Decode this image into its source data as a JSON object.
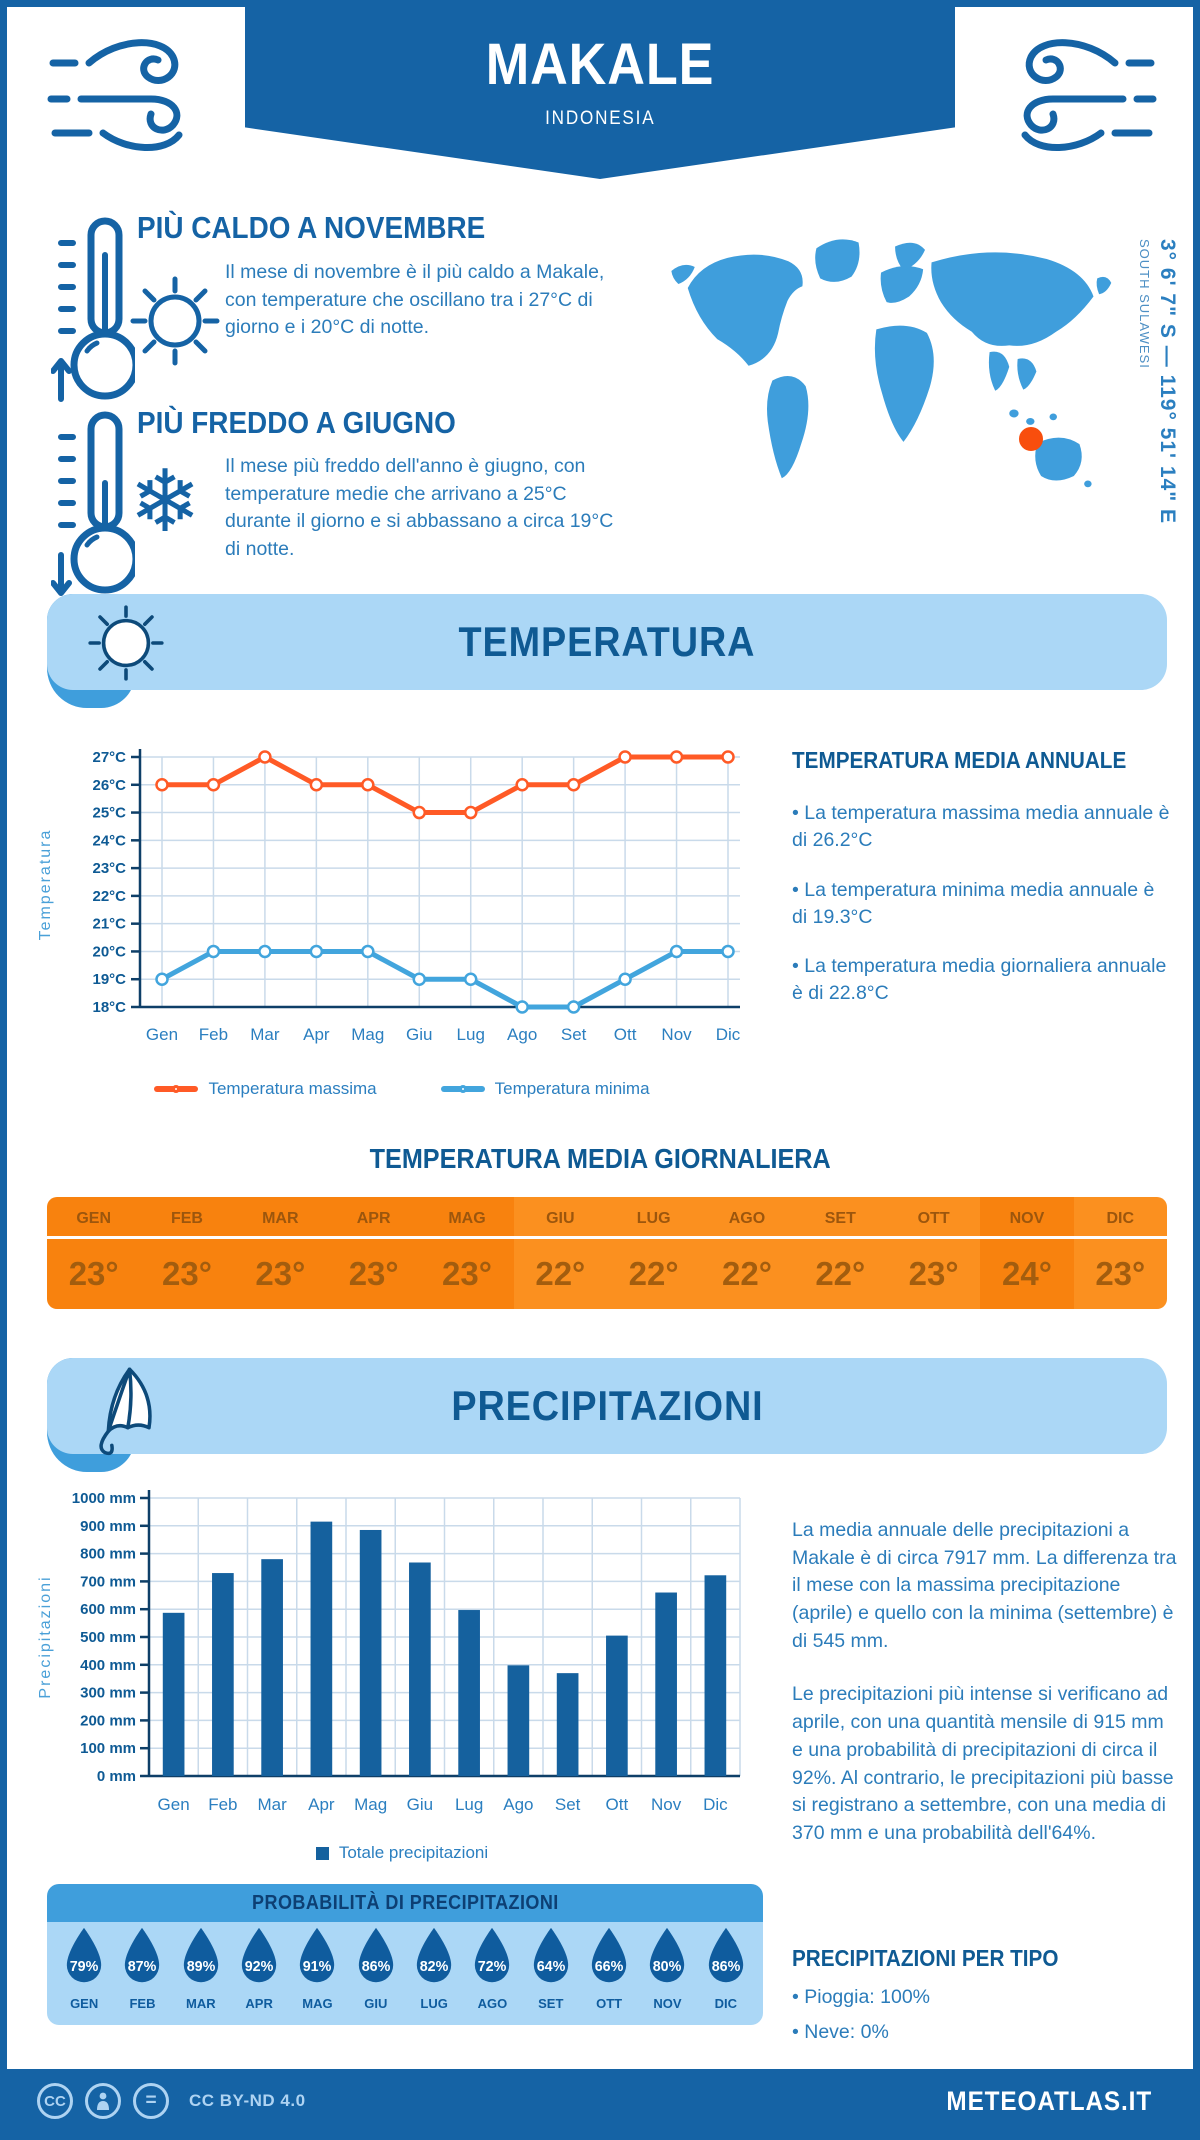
{
  "header": {
    "title": "MAKALE",
    "subtitle": "INDONESIA"
  },
  "map": {
    "coordinates": "3° 6' 7\" S — 119° 51' 14\" E",
    "region": "SOUTH SULAWESI"
  },
  "highlights": {
    "warm": {
      "title": "PIÙ CALDO A NOVEMBRE",
      "text": "Il mese di novembre è il più caldo a Makale, con temperature che oscillano tra i 27°C di giorno e i 20°C di notte."
    },
    "cold": {
      "title": "PIÙ FREDDO A GIUGNO",
      "text": "Il mese più freddo dell'anno è giugno, con temperature medie che arrivano a 25°C durante il giorno e si abbassano a circa 19°C di notte."
    }
  },
  "temperature_section": {
    "title": "TEMPERATURA",
    "annual": {
      "title": "TEMPERATURA MEDIA ANNUALE",
      "bullets": [
        "La temperatura massima media annuale è di 26.2°C",
        "La temperatura minima media annuale è di 19.3°C",
        "La temperatura media giornaliera annuale è di 22.8°C"
      ]
    },
    "daily": {
      "title": "TEMPERATURA MEDIA GIORNALIERA",
      "months": [
        "GEN",
        "FEB",
        "MAR",
        "APR",
        "MAG",
        "GIU",
        "LUG",
        "AGO",
        "SET",
        "OTT",
        "NOV",
        "DIC"
      ],
      "values": [
        "23°",
        "23°",
        "23°",
        "23°",
        "23°",
        "22°",
        "22°",
        "22°",
        "22°",
        "23°",
        "24°",
        "23°"
      ],
      "shade_pattern": [
        "d",
        "d",
        "d",
        "d",
        "d",
        "l",
        "l",
        "l",
        "l",
        "l",
        "d",
        "l"
      ]
    }
  },
  "precipitation_section": {
    "title": "PRECIPITAZIONI",
    "paragraphs": [
      "La media annuale delle precipitazioni a Makale è di circa 7917 mm. La differenza tra il mese con la massima precipitazione (aprile) e quello con la minima (settembre) è di 545 mm.",
      "Le precipitazioni più intense si verificano ad aprile, con una quantità mensile di 915 mm e una probabilità di precipitazioni di circa il 92%. Al contrario, le precipitazioni più basse si registrano a settembre, con una media di 370 mm e una probabilità dell'64%."
    ],
    "probability": {
      "title": "PROBABILITÀ DI PRECIPITAZIONI",
      "months": [
        "GEN",
        "FEB",
        "MAR",
        "APR",
        "MAG",
        "GIU",
        "LUG",
        "AGO",
        "SET",
        "OTT",
        "NOV",
        "DIC"
      ],
      "values": [
        "79%",
        "87%",
        "89%",
        "92%",
        "91%",
        "86%",
        "82%",
        "72%",
        "64%",
        "66%",
        "80%",
        "86%"
      ]
    },
    "types": {
      "title": "PRECIPITAZIONI PER TIPO",
      "bullets": [
        "Pioggia: 100%",
        "Neve: 0%"
      ]
    }
  },
  "chart_data": [
    {
      "type": "line",
      "categories": [
        "Gen",
        "Feb",
        "Mar",
        "Apr",
        "Mag",
        "Giu",
        "Lug",
        "Ago",
        "Set",
        "Ott",
        "Nov",
        "Dic"
      ],
      "ylabel": "Temperatura",
      "ylim": [
        18,
        27
      ],
      "ytick_step": 1,
      "ytick_suffix": "°C",
      "grid": true,
      "legend_position": "bottom",
      "series": [
        {
          "name": "Temperatura massima",
          "color": "#ff5a26",
          "values": [
            26,
            26,
            27,
            26,
            26,
            25,
            25,
            26,
            26,
            27,
            27,
            27
          ]
        },
        {
          "name": "Temperatura minima",
          "color": "#42a5dd",
          "values": [
            19,
            20,
            20,
            20,
            20,
            19,
            19,
            18,
            18,
            19,
            20,
            20
          ]
        }
      ]
    },
    {
      "type": "bar",
      "categories": [
        "Gen",
        "Feb",
        "Mar",
        "Apr",
        "Mag",
        "Giu",
        "Lug",
        "Ago",
        "Set",
        "Ott",
        "Nov",
        "Dic"
      ],
      "values": [
        587,
        730,
        780,
        915,
        885,
        768,
        597,
        398,
        370,
        505,
        660,
        722
      ],
      "series_name": "Totale precipitazioni",
      "ylabel": "Precipitazioni",
      "ylim": [
        0,
        1000
      ],
      "ytick_step": 100,
      "ytick_suffix": " mm",
      "grid": true,
      "bar_color": "#15619e"
    }
  ],
  "colors": {
    "brand_blue": "#1563a5",
    "medium_blue": "#3f9edc",
    "light_blue": "#abd7f6",
    "heading_blue": "#0f5a93",
    "body_blue": "#2b7cba",
    "grid_blue": "#c9daea",
    "axis_navy": "#0e3f68",
    "tick_blue": "#0e5a94",
    "month_blue": "#2b7fc0",
    "table_orange_dark": "#f8820e",
    "table_orange_light": "#fb901f",
    "marker_orange": "#f84e0d",
    "drop_blue": "#0f5c9e"
  },
  "footer": {
    "license": "CC BY-ND 4.0",
    "site": "METEOATLAS.IT"
  }
}
